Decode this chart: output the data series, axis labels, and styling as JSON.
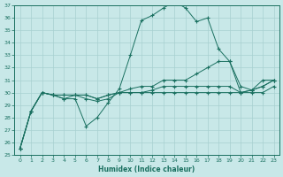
{
  "title": "",
  "xlabel": "Humidex (Indice chaleur)",
  "ylabel": "",
  "bg_color": "#c8e8e8",
  "line_color": "#1a7060",
  "grid_color": "#a8d0d0",
  "ylim": [
    25,
    37
  ],
  "xlim": [
    -0.5,
    23.5
  ],
  "yticks": [
    25,
    26,
    27,
    28,
    29,
    30,
    31,
    32,
    33,
    34,
    35,
    36,
    37
  ],
  "xticks": [
    0,
    1,
    2,
    3,
    4,
    5,
    6,
    7,
    8,
    9,
    10,
    11,
    12,
    13,
    14,
    15,
    16,
    17,
    18,
    19,
    20,
    21,
    22,
    23
  ],
  "series": [
    [
      25.5,
      28.5,
      30.0,
      29.8,
      29.5,
      29.5,
      27.3,
      28.0,
      29.2,
      30.3,
      33.0,
      35.8,
      36.2,
      36.8,
      37.3,
      36.8,
      35.7,
      36.0,
      33.5,
      32.5,
      30.0,
      30.2,
      31.0,
      31.0
    ],
    [
      25.5,
      28.5,
      30.0,
      29.8,
      29.8,
      29.8,
      29.8,
      29.5,
      29.8,
      30.0,
      30.3,
      30.5,
      30.5,
      31.0,
      31.0,
      31.0,
      31.5,
      32.0,
      32.5,
      32.5,
      30.5,
      30.2,
      30.5,
      31.0
    ],
    [
      25.5,
      28.5,
      30.0,
      29.8,
      29.8,
      29.8,
      29.8,
      29.5,
      29.8,
      30.0,
      30.0,
      30.0,
      30.2,
      30.5,
      30.5,
      30.5,
      30.5,
      30.5,
      30.5,
      30.5,
      30.0,
      30.2,
      30.5,
      31.0
    ],
    [
      25.5,
      28.5,
      30.0,
      29.8,
      29.5,
      29.8,
      29.5,
      29.3,
      29.5,
      30.0,
      30.0,
      30.0,
      30.0,
      30.0,
      30.0,
      30.0,
      30.0,
      30.0,
      30.0,
      30.0,
      30.0,
      30.0,
      30.0,
      30.5
    ]
  ]
}
